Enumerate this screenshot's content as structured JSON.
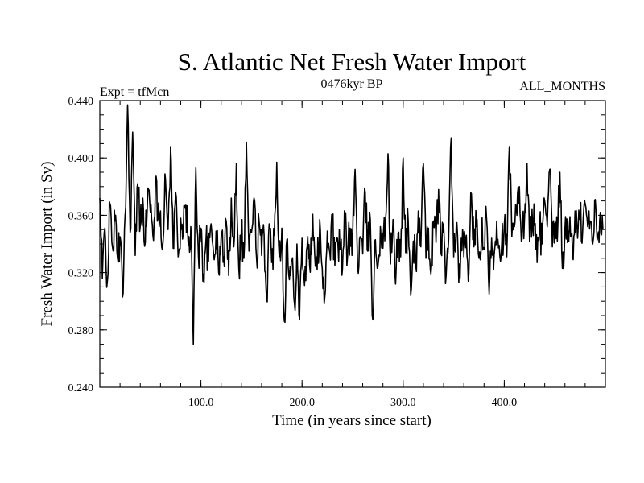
{
  "chart_data": {
    "type": "line",
    "title": "S. Atlantic Net Fresh Water Import",
    "left_note": "Expt = tfMcn",
    "center_note": "0476kyr BP",
    "right_note": "ALL_MONTHS",
    "xlabel": "Time (in years since start)",
    "ylabel": "Fresh Water Import (in Sv)",
    "xlim": [
      0,
      500
    ],
    "ylim": [
      0.24,
      0.44
    ],
    "x_ticks": [
      100,
      200,
      300,
      400
    ],
    "x_tick_labels": [
      "100.0",
      "200.0",
      "300.0",
      "400.0"
    ],
    "y_ticks": [
      0.24,
      0.28,
      0.32,
      0.36,
      0.4,
      0.44
    ],
    "y_tick_labels": [
      "0.240",
      "0.280",
      "0.320",
      "0.360",
      "0.400",
      "0.440"
    ],
    "grid": false,
    "series": [
      {
        "x_start": 0,
        "x_step": 2.5,
        "values": [
          0.372,
          0.316,
          0.351,
          0.314,
          0.368,
          0.338,
          0.356,
          0.33,
          0.345,
          0.303,
          0.36,
          0.437,
          0.348,
          0.418,
          0.332,
          0.382,
          0.352,
          0.372,
          0.341,
          0.379,
          0.362,
          0.346,
          0.381,
          0.358,
          0.363,
          0.341,
          0.385,
          0.35,
          0.408,
          0.337,
          0.376,
          0.331,
          0.358,
          0.347,
          0.367,
          0.339,
          0.352,
          0.27,
          0.393,
          0.331,
          0.351,
          0.319,
          0.343,
          0.328,
          0.354,
          0.333,
          0.349,
          0.32,
          0.345,
          0.331,
          0.356,
          0.318,
          0.372,
          0.338,
          0.396,
          0.322,
          0.351,
          0.33,
          0.411,
          0.335,
          0.348,
          0.372,
          0.33,
          0.356,
          0.332,
          0.346,
          0.3,
          0.354,
          0.327,
          0.346,
          0.397,
          0.331,
          0.351,
          0.286,
          0.343,
          0.315,
          0.328,
          0.298,
          0.34,
          0.287,
          0.344,
          0.311,
          0.338,
          0.325,
          0.351,
          0.333,
          0.322,
          0.357,
          0.323,
          0.303,
          0.349,
          0.334,
          0.36,
          0.325,
          0.344,
          0.336,
          0.322,
          0.359,
          0.331,
          0.351,
          0.342,
          0.392,
          0.323,
          0.345,
          0.333,
          0.376,
          0.335,
          0.357,
          0.287,
          0.343,
          0.324,
          0.352,
          0.337,
          0.356,
          0.403,
          0.326,
          0.357,
          0.312,
          0.347,
          0.331,
          0.4,
          0.334,
          0.356,
          0.304,
          0.342,
          0.325,
          0.363,
          0.338,
          0.396,
          0.33,
          0.351,
          0.319,
          0.356,
          0.341,
          0.378,
          0.333,
          0.354,
          0.318,
          0.343,
          0.414,
          0.331,
          0.352,
          0.313,
          0.344,
          0.331,
          0.346,
          0.319,
          0.375,
          0.338,
          0.352,
          0.33,
          0.347,
          0.337,
          0.358,
          0.305,
          0.344,
          0.332,
          0.356,
          0.339,
          0.341,
          0.353,
          0.331,
          0.408,
          0.345,
          0.352,
          0.36,
          0.38,
          0.343,
          0.357,
          0.396,
          0.342,
          0.364,
          0.353,
          0.327,
          0.354,
          0.34,
          0.37,
          0.352,
          0.392,
          0.338,
          0.354,
          0.342,
          0.39,
          0.323,
          0.351,
          0.341,
          0.359,
          0.332,
          0.363,
          0.344,
          0.36,
          0.348,
          0.368,
          0.352,
          0.356,
          0.34,
          0.371,
          0.345,
          0.362,
          0.35
        ]
      }
    ]
  }
}
